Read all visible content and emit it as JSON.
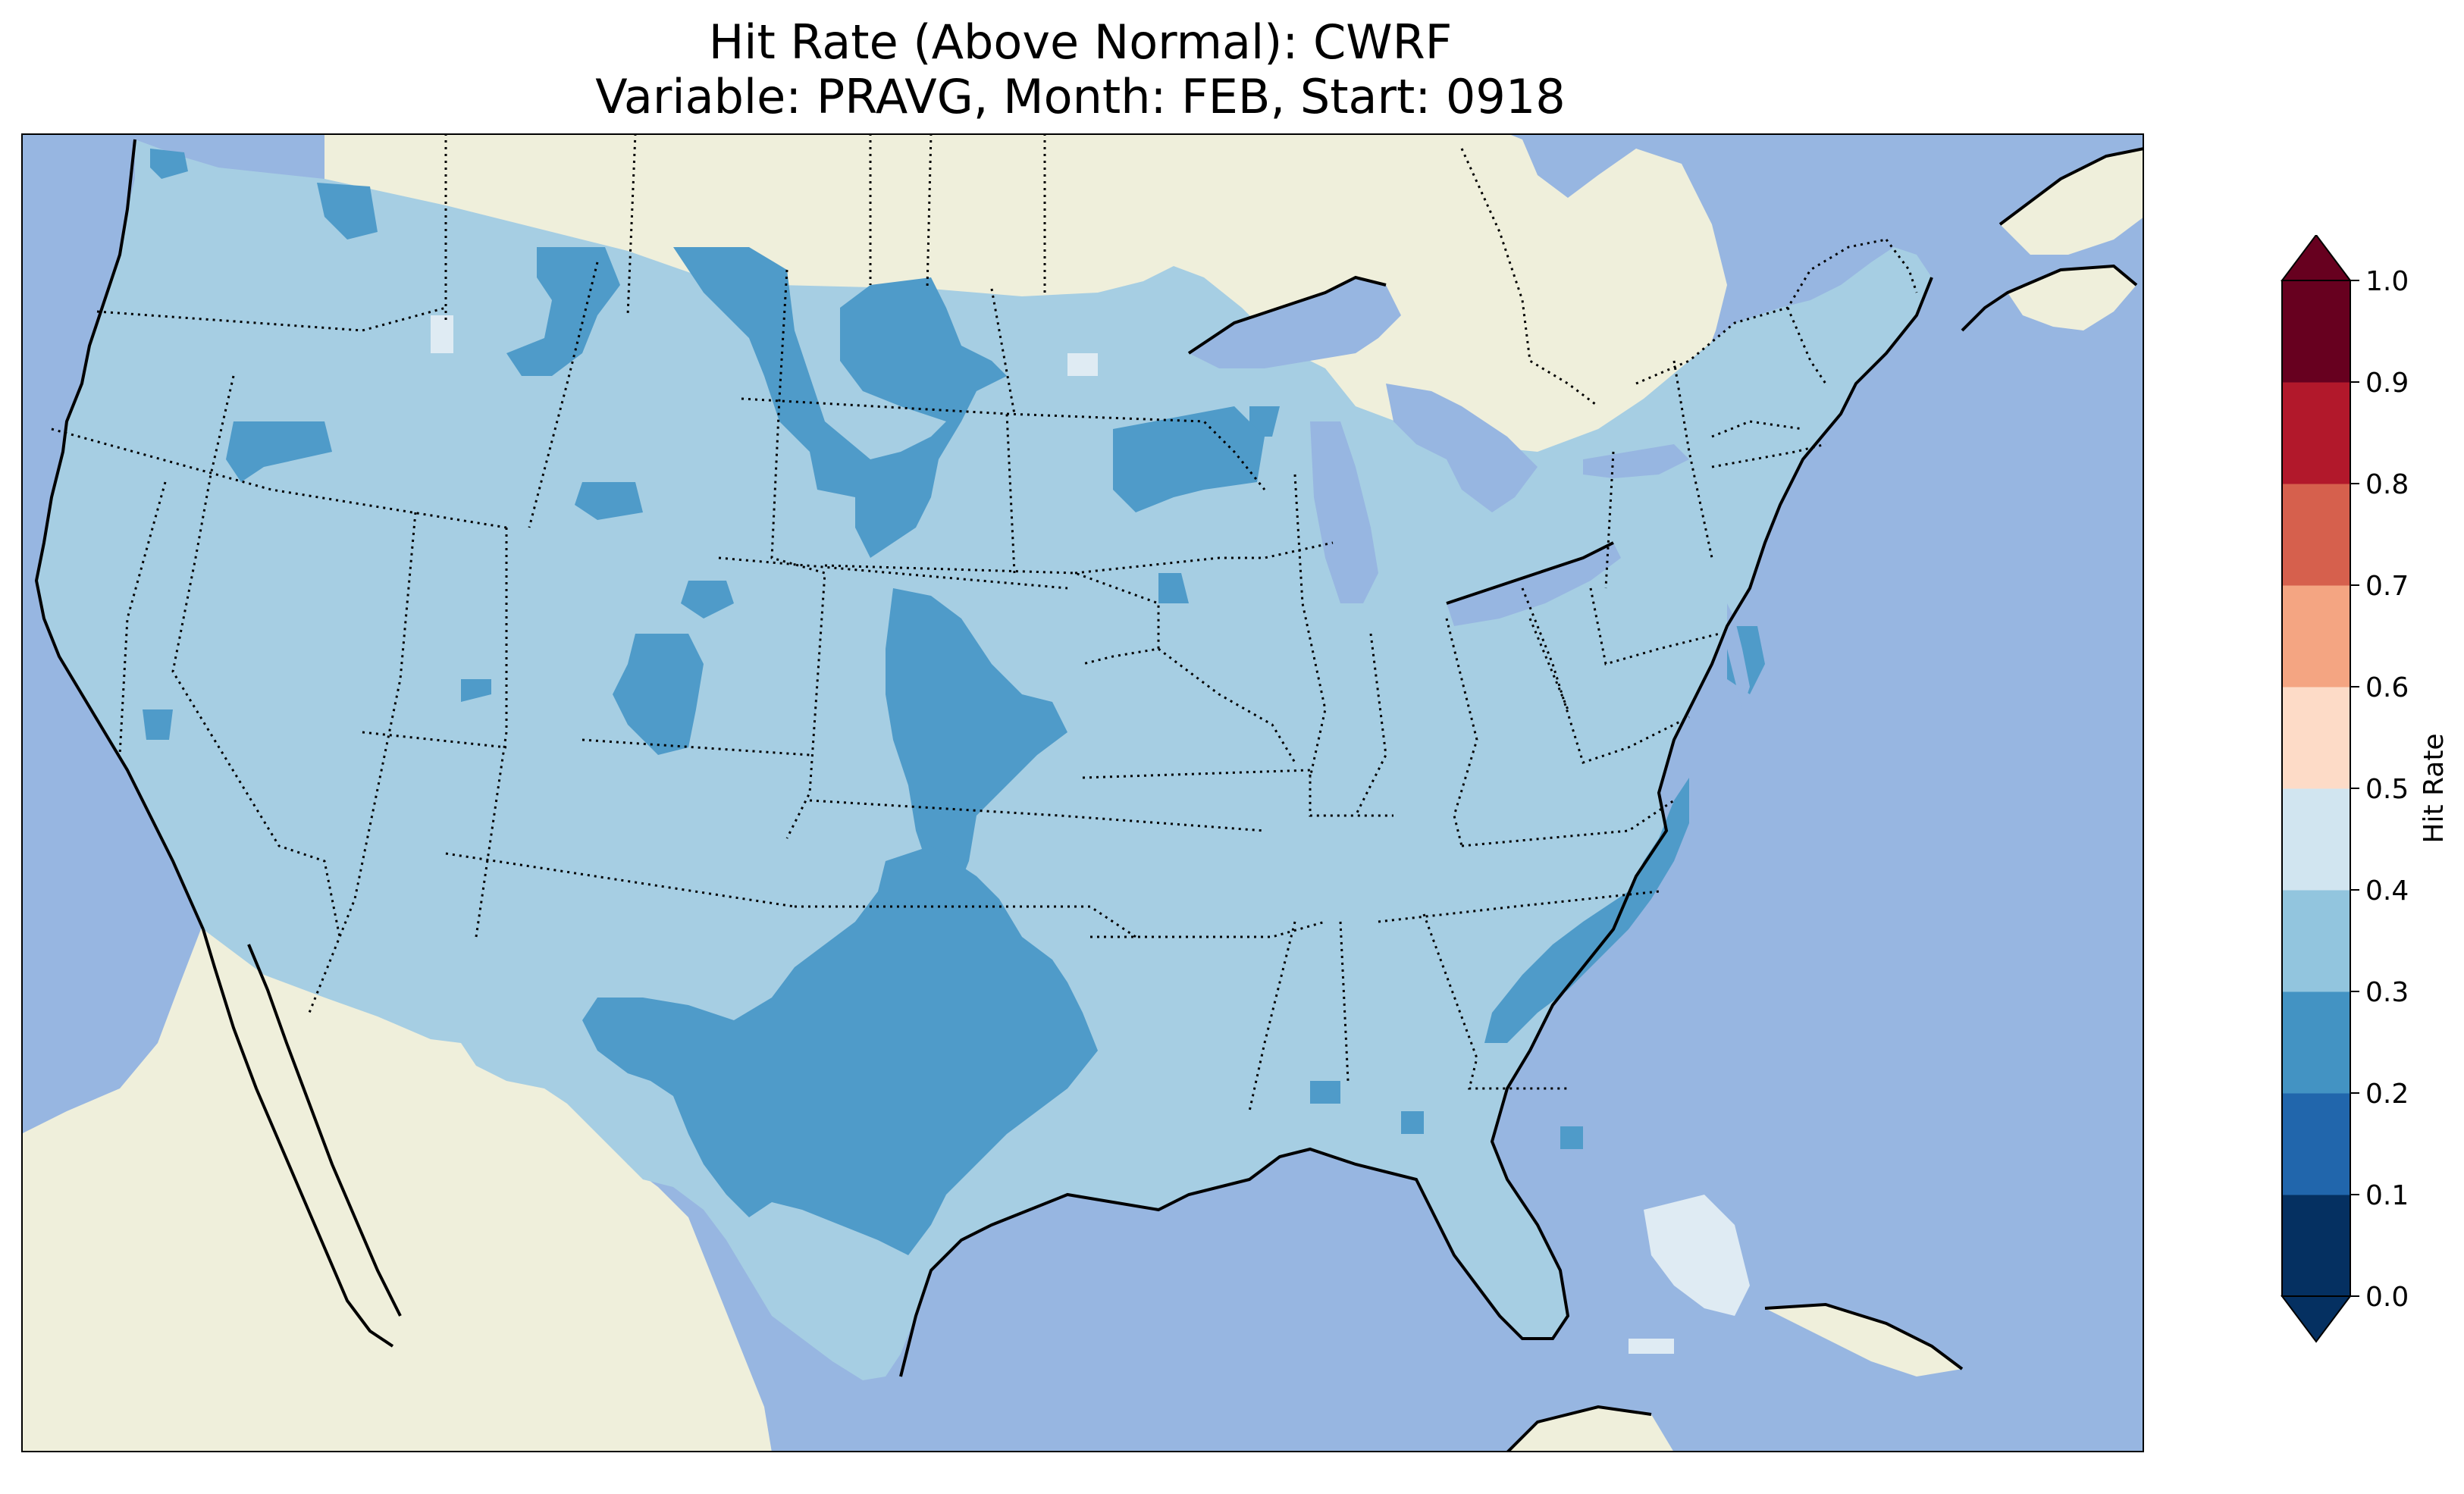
{
  "title": {
    "line1": "Hit Rate (Above Normal): CWRF",
    "line2": "Variable: PRAVG, Month: FEB, Start: 0918"
  },
  "colors": {
    "ocean": "#97b6e1",
    "land": "#efefdb",
    "hit_0_2_0_3": "#4f9bc9",
    "hit_0_3_0_4": "#a6cee3",
    "hit_0_4_0_5": "#dfebf3"
  },
  "colorbar": {
    "label": "Hit Rate",
    "ticks": [
      "0.0",
      "0.1",
      "0.2",
      "0.3",
      "0.4",
      "0.5",
      "0.6",
      "0.7",
      "0.8",
      "0.9",
      "1.0"
    ],
    "bins": [
      {
        "range": [
          0.0,
          0.1
        ],
        "color": "#053061"
      },
      {
        "range": [
          0.1,
          0.2
        ],
        "color": "#2166ac"
      },
      {
        "range": [
          0.2,
          0.3
        ],
        "color": "#4393c3"
      },
      {
        "range": [
          0.3,
          0.4
        ],
        "color": "#92c5de"
      },
      {
        "range": [
          0.4,
          0.5
        ],
        "color": "#d1e5f0"
      },
      {
        "range": [
          0.5,
          0.6
        ],
        "color": "#fddbc7"
      },
      {
        "range": [
          0.6,
          0.7
        ],
        "color": "#f4a582"
      },
      {
        "range": [
          0.7,
          0.8
        ],
        "color": "#d6604d"
      },
      {
        "range": [
          0.8,
          0.9
        ],
        "color": "#b2182b"
      },
      {
        "range": [
          0.9,
          1.0
        ],
        "color": "#67001f"
      }
    ],
    "extend": "both"
  }
}
